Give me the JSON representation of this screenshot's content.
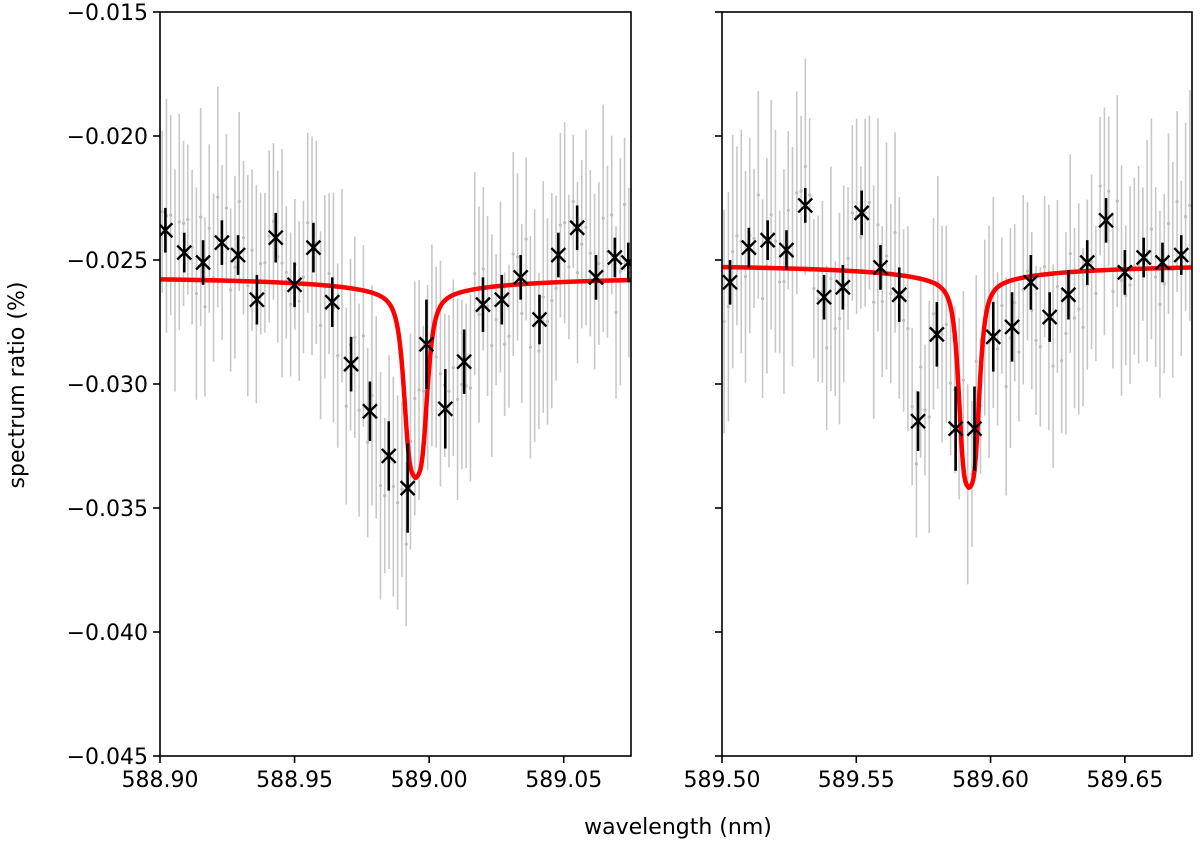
{
  "figure": {
    "xlabel": "wavelength (nm)",
    "ylabel": "spectrum ratio (%)"
  },
  "chart_data": [
    {
      "type": "scatter",
      "panel": "left",
      "xlim": [
        588.9,
        589.075
      ],
      "ylim": [
        -0.045,
        -0.015
      ],
      "x_ticks": [
        588.9,
        588.95,
        589.0,
        589.05
      ],
      "x_tick_labels": [
        "588.90",
        "588.95",
        "589.00",
        "589.05"
      ],
      "y_ticks": [
        -0.045,
        -0.04,
        -0.035,
        -0.03,
        -0.025,
        -0.02,
        -0.015
      ],
      "y_tick_labels": [
        "−0.045",
        "−0.040",
        "−0.035",
        "−0.030",
        "−0.025",
        "−0.020",
        "−0.015"
      ],
      "binned_points": {
        "marker": "x",
        "color": "#000000",
        "x": [
          588.902,
          588.909,
          588.916,
          588.923,
          588.929,
          588.936,
          588.943,
          588.95,
          588.957,
          588.964,
          588.971,
          588.978,
          588.985,
          588.992,
          588.999,
          589.006,
          589.013,
          589.02,
          589.027,
          589.034,
          589.041,
          589.048,
          589.055,
          589.062,
          589.069,
          589.074
        ],
        "y": [
          -0.0238,
          -0.0247,
          -0.0251,
          -0.0243,
          -0.0248,
          -0.0266,
          -0.0241,
          -0.026,
          -0.0245,
          -0.0267,
          -0.0292,
          -0.0311,
          -0.0329,
          -0.0342,
          -0.0284,
          -0.031,
          -0.0291,
          -0.0268,
          -0.0266,
          -0.0257,
          -0.0274,
          -0.0248,
          -0.0237,
          -0.0257,
          -0.0249,
          -0.0251
        ],
        "err": [
          0.0009,
          0.0008,
          0.0009,
          0.0009,
          0.0008,
          0.001,
          0.001,
          0.0009,
          0.001,
          0.001,
          0.0011,
          0.0012,
          0.0014,
          0.0018,
          0.0018,
          0.0016,
          0.0013,
          0.0011,
          0.001,
          0.0009,
          0.001,
          0.0009,
          0.0009,
          0.0009,
          0.0008,
          0.0008
        ]
      },
      "fit_line": {
        "color": "#ff0000",
        "center": 588.995,
        "baseline": -0.0258,
        "depth": 0.0066,
        "width": 0.0045,
        "wing_amplitude": 0.003,
        "wing_width": 0.05
      },
      "raw_points": {
        "color": "#c8c8c8",
        "count": 110,
        "scatter": 0.0024,
        "err": 0.0035
      }
    },
    {
      "type": "scatter",
      "panel": "right",
      "xlim": [
        589.5,
        589.675
      ],
      "ylim": [
        -0.045,
        -0.015
      ],
      "x_ticks": [
        589.5,
        589.55,
        589.6,
        589.65
      ],
      "x_tick_labels": [
        "589.50",
        "589.55",
        "589.60",
        "589.65"
      ],
      "y_ticks": [
        -0.045,
        -0.04,
        -0.035,
        -0.03,
        -0.025,
        -0.02,
        -0.015
      ],
      "binned_points": {
        "marker": "x",
        "color": "#000000",
        "x": [
          589.503,
          589.51,
          589.517,
          589.524,
          589.531,
          589.538,
          589.545,
          589.552,
          589.559,
          589.566,
          589.573,
          589.58,
          589.587,
          589.594,
          589.601,
          589.608,
          589.615,
          589.622,
          589.629,
          589.636,
          589.643,
          589.65,
          589.657,
          589.664,
          589.671
        ],
        "y": [
          -0.0259,
          -0.0245,
          -0.0242,
          -0.0246,
          -0.0228,
          -0.0265,
          -0.0261,
          -0.0231,
          -0.0253,
          -0.0264,
          -0.0315,
          -0.028,
          -0.0318,
          -0.0318,
          -0.0281,
          -0.0277,
          -0.0259,
          -0.0273,
          -0.0264,
          -0.0251,
          -0.0234,
          -0.0255,
          -0.0249,
          -0.0251,
          -0.0248
        ],
        "err": [
          0.0009,
          0.0008,
          0.0008,
          0.0008,
          0.0007,
          0.0009,
          0.0009,
          0.0009,
          0.0009,
          0.0011,
          0.0012,
          0.0013,
          0.0017,
          0.0017,
          0.0014,
          0.0014,
          0.0011,
          0.001,
          0.001,
          0.0009,
          0.0009,
          0.0009,
          0.0008,
          0.0008,
          0.0008
        ]
      },
      "fit_line": {
        "color": "#ff0000",
        "center": 589.592,
        "baseline": -0.0253,
        "depth": 0.0075,
        "width": 0.004,
        "wing_amplitude": 0.003,
        "wing_width": 0.05
      },
      "raw_points": {
        "color": "#c8c8c8",
        "count": 110,
        "scatter": 0.0024,
        "err": 0.0035
      }
    }
  ]
}
